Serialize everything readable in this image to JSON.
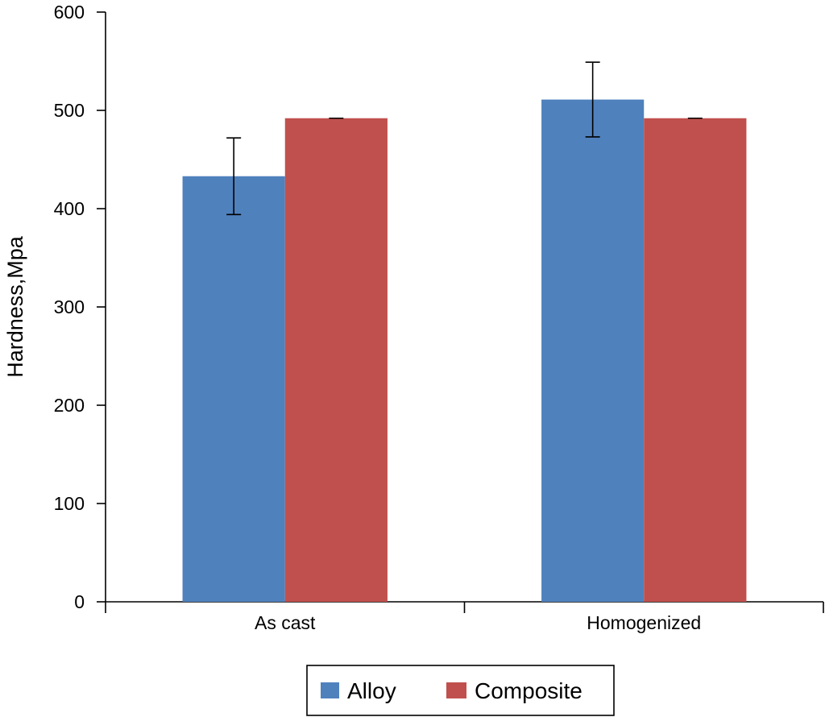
{
  "chart_data": {
    "type": "bar",
    "title": "",
    "xlabel": "",
    "ylabel": "Hardness,Mpa",
    "ylim": [
      0,
      600
    ],
    "yticks": [
      0,
      100,
      200,
      300,
      400,
      500,
      600
    ],
    "categories": [
      "As cast",
      "Homogenized"
    ],
    "series": [
      {
        "name": "Alloy",
        "color": "#4f81bd",
        "values": [
          433,
          511
        ],
        "errors": [
          39,
          38
        ]
      },
      {
        "name": "Composite",
        "color": "#c0504d",
        "values": [
          492,
          492
        ],
        "errors": [
          0,
          0
        ]
      }
    ],
    "grid": false,
    "legend": "bottom-center"
  }
}
